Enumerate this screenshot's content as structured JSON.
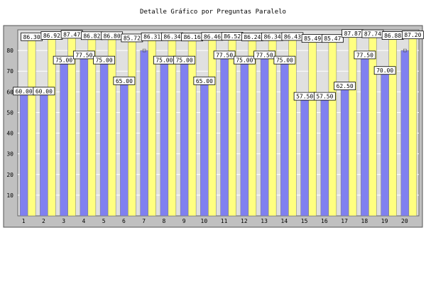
{
  "chart_data": {
    "type": "bar",
    "title": "Detalle Gráfico por Preguntas Paralelo",
    "xlabel": "",
    "ylabel": "",
    "ylim": [
      0,
      90
    ],
    "yticks": [
      10,
      20,
      30,
      40,
      50,
      60,
      70,
      80
    ],
    "grid": true,
    "legend": "none",
    "categories": [
      "1",
      "2",
      "3",
      "4",
      "5",
      "6",
      "7",
      "8",
      "9",
      "10",
      "11",
      "12",
      "13",
      "14",
      "15",
      "16",
      "17",
      "18",
      "19",
      "20"
    ],
    "series": [
      {
        "color": "#8080f0",
        "values": [
          60.0,
          60.0,
          75.0,
          77.5,
          75.0,
          65.0,
          80.0,
          75.0,
          75.0,
          65.0,
          77.5,
          75.0,
          77.5,
          75.0,
          57.5,
          57.5,
          62.5,
          77.5,
          70.0,
          80.0
        ],
        "labels": [
          "60.00",
          "60.00",
          "75.00",
          "77.50",
          "75.00",
          "65.00",
          "",
          "75.00",
          "75.00",
          "65.00",
          "77.50",
          "75.00",
          "77.50",
          "75.00",
          "57.50",
          "57.50",
          "62.50",
          "77.50",
          "70.00",
          ""
        ]
      },
      {
        "color": "#ffff80",
        "values": [
          86.3,
          86.92,
          87.47,
          86.82,
          86.8,
          85.72,
          86.31,
          86.34,
          86.16,
          86.46,
          86.52,
          86.24,
          86.34,
          86.43,
          85.49,
          85.47,
          87.87,
          87.74,
          86.88,
          87.2
        ],
        "labels": [
          "86.30",
          "86.92",
          "87.47",
          "86.82",
          "86.80",
          "85.72",
          "86.31",
          "86.34",
          "86.16",
          "86.46",
          "86.52",
          "86.24",
          "86.34",
          "86.43",
          "85.49",
          "85.47",
          "87.87",
          "87.74",
          "86.88",
          "87.20"
        ]
      }
    ]
  }
}
